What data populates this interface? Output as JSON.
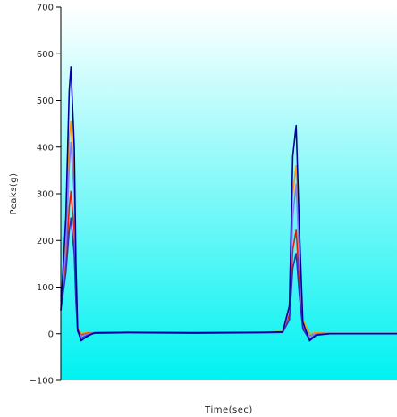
{
  "chart_data": {
    "type": "line",
    "title": "",
    "xlabel": "Time(sec)",
    "ylabel": "Peaks(g)",
    "ylim": [
      -100,
      700
    ],
    "yticks": [
      -100,
      0,
      100,
      200,
      300,
      400,
      500,
      600,
      700
    ],
    "yticklabels": [
      "−100",
      "0",
      "100",
      "200",
      "300",
      "400",
      "500",
      "600",
      "700"
    ],
    "xticks": [],
    "grid": false,
    "legend": "none",
    "background_gradient": {
      "top": "#ffffff",
      "bottom": "#00f2f2"
    },
    "series": [
      {
        "color": "#ff9900",
        "x": [
          0,
          1.5,
          2.5,
          3,
          4,
          4.5,
          5,
          6,
          8,
          10,
          20,
          40,
          60,
          66,
          68,
          69,
          70,
          71,
          72,
          74,
          76,
          80,
          100
        ],
        "y": [
          70,
          200,
          420,
          455,
          330,
          130,
          15,
          0,
          3,
          2,
          3,
          3,
          3,
          5,
          60,
          300,
          360,
          180,
          30,
          0,
          2,
          1,
          1
        ]
      },
      {
        "color": "#e02000",
        "x": [
          0,
          1.5,
          2.5,
          3,
          4,
          4.5,
          5,
          6,
          8,
          10,
          20,
          40,
          60,
          66,
          68,
          69,
          70,
          71,
          72,
          74,
          76,
          80,
          100
        ],
        "y": [
          80,
          150,
          270,
          305,
          220,
          90,
          10,
          -3,
          1,
          2,
          3,
          2,
          3,
          4,
          40,
          180,
          222,
          110,
          15,
          -5,
          0,
          1,
          1
        ]
      },
      {
        "color": "#8080ff",
        "x": [
          0,
          1.5,
          2.5,
          3,
          4,
          4.5,
          5,
          6,
          8,
          10,
          20,
          40,
          60,
          66,
          68,
          69,
          70,
          71,
          72,
          74,
          76,
          80,
          100
        ],
        "y": [
          60,
          180,
          360,
          410,
          300,
          110,
          10,
          -5,
          0,
          2,
          2,
          3,
          2,
          3,
          50,
          250,
          320,
          150,
          20,
          -6,
          0,
          1,
          1
        ]
      },
      {
        "color": "#3030c0",
        "x": [
          0,
          1.5,
          2.5,
          3,
          4,
          4.5,
          5,
          6,
          8,
          10,
          20,
          40,
          60,
          66,
          68,
          69,
          70,
          71,
          72,
          74,
          76,
          80,
          100
        ],
        "y": [
          50,
          130,
          220,
          248,
          170,
          70,
          5,
          -10,
          -3,
          1,
          2,
          1,
          2,
          3,
          30,
          140,
          172,
          80,
          10,
          -12,
          -2,
          0,
          0
        ]
      },
      {
        "color": "#0000a0",
        "x": [
          0,
          1.5,
          2.5,
          3,
          4,
          4.5,
          5,
          6,
          8,
          10,
          20,
          40,
          60,
          66,
          68,
          69,
          70,
          71,
          72,
          74,
          76,
          80,
          100
        ],
        "y": [
          50,
          250,
          520,
          572,
          400,
          150,
          10,
          -15,
          -5,
          2,
          3,
          2,
          3,
          4,
          60,
          380,
          446,
          220,
          25,
          -15,
          -3,
          0,
          0
        ]
      }
    ]
  }
}
